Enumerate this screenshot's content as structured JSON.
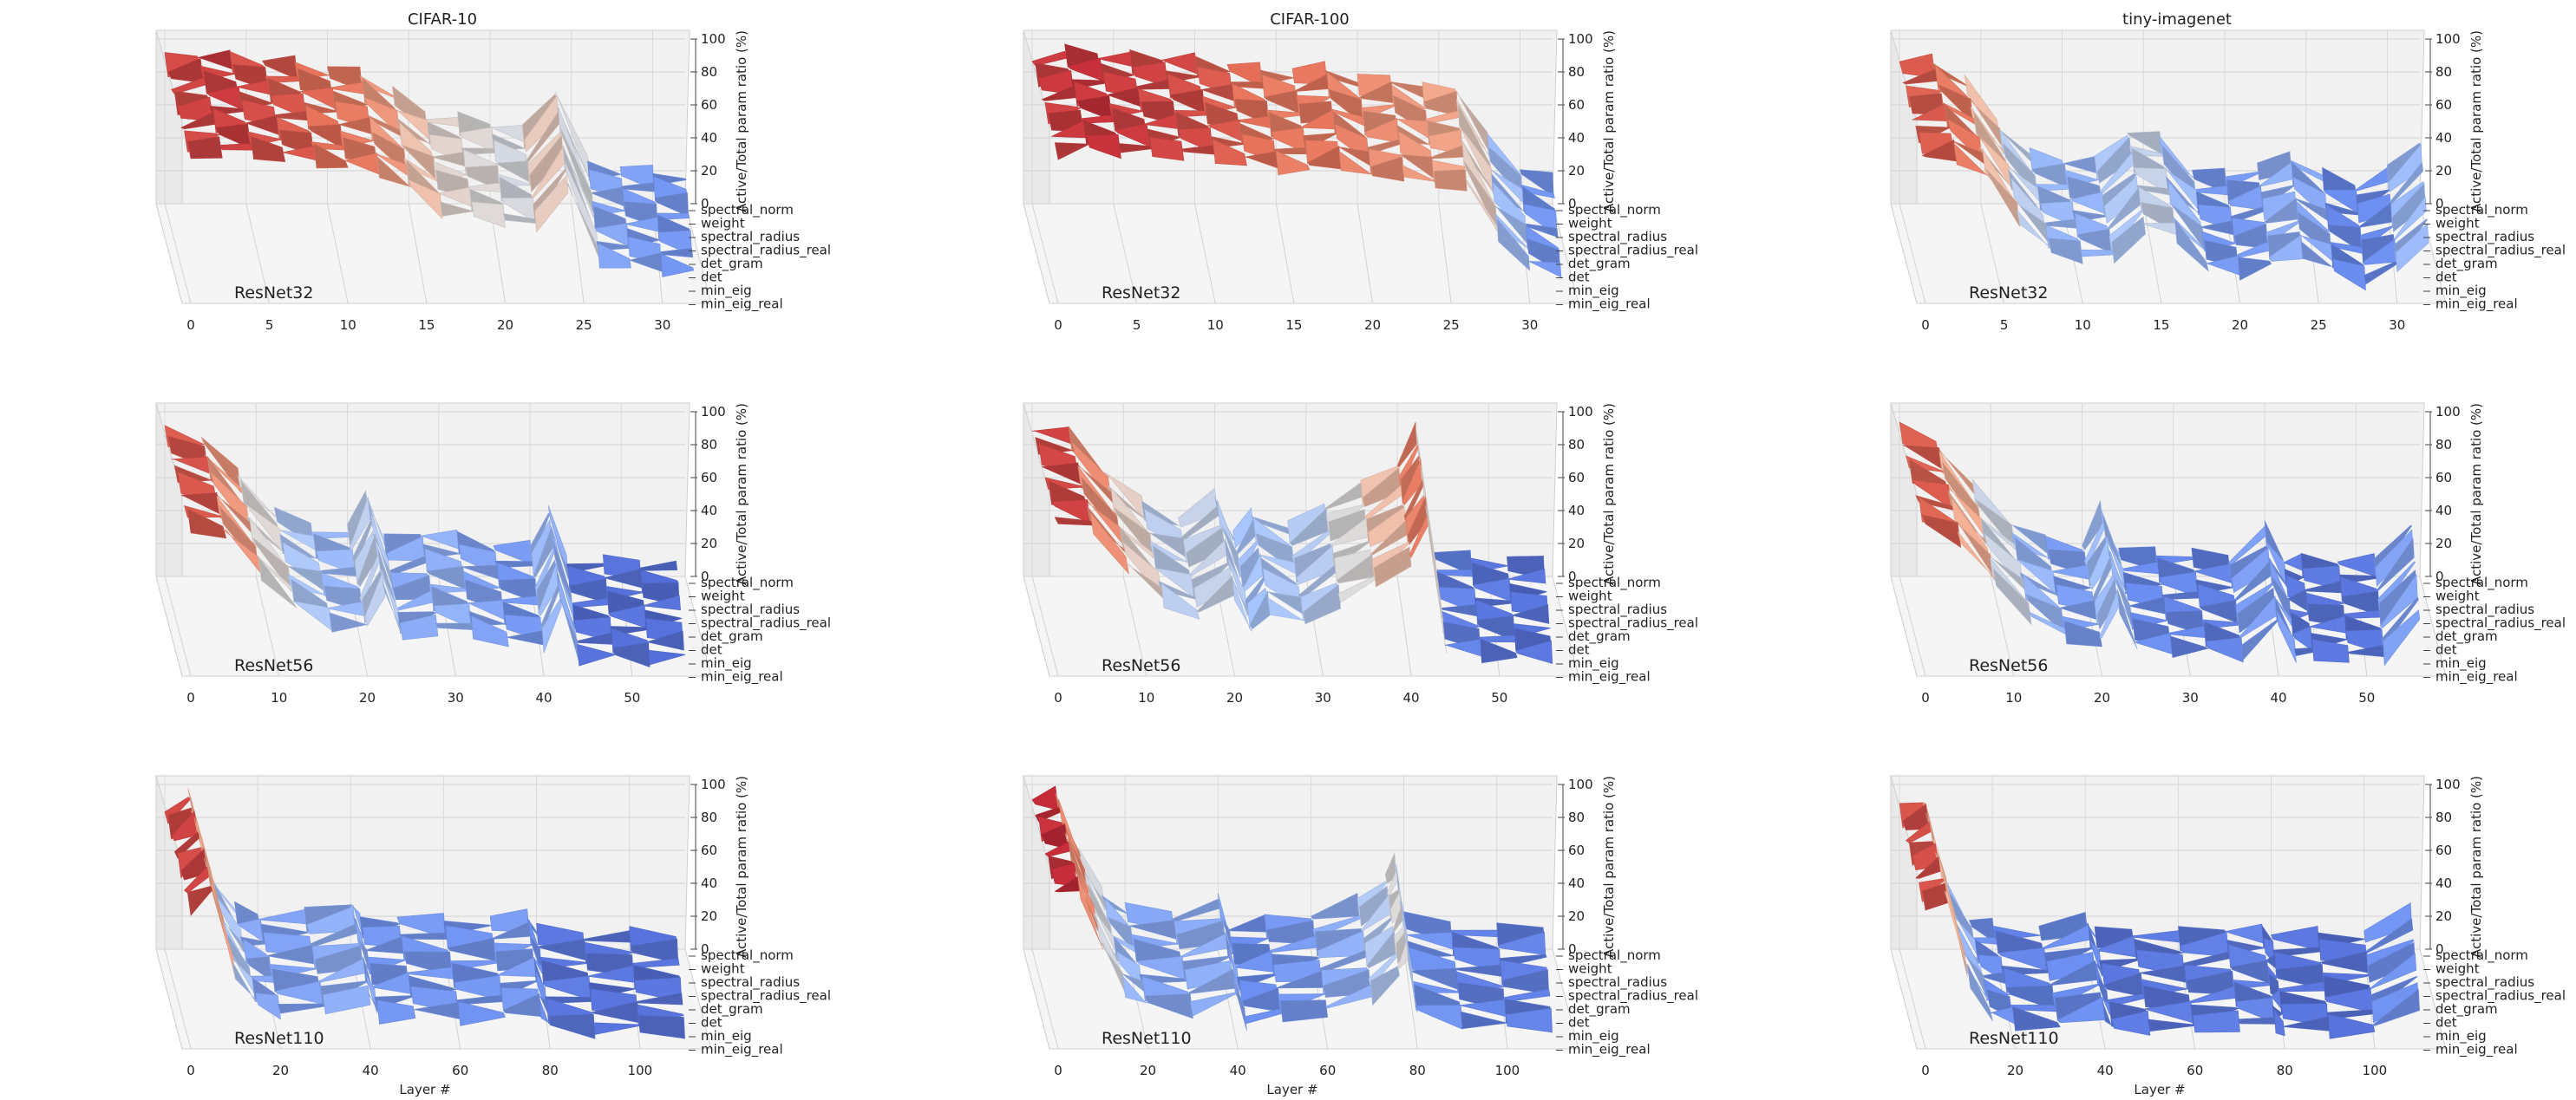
{
  "figure": {
    "columns": [
      "CIFAR-10",
      "CIFAR-100",
      "tiny-imagenet"
    ],
    "rows": [
      "ResNet32",
      "ResNet56",
      "ResNet110"
    ],
    "xlabel": "Layer #",
    "zlabel": "Active/Total param ratio (%)",
    "categories": [
      "spectral_norm",
      "weight",
      "spectral_radius",
      "spectral_radius_real",
      "det_gram",
      "det",
      "min_eig",
      "min_eig_real"
    ],
    "zticks": [
      0,
      20,
      40,
      60,
      80,
      100
    ],
    "xticks_by_row": [
      [
        0,
        5,
        10,
        15,
        20,
        25,
        30
      ],
      [
        0,
        10,
        20,
        30,
        40,
        50
      ],
      [
        0,
        20,
        40,
        60,
        80,
        100
      ]
    ],
    "colormap": [
      "#3b4cc0",
      "#6f92f3",
      "#aac7fd",
      "#dddcdc",
      "#f7b89c",
      "#e7745b",
      "#b40426"
    ]
  },
  "chart_data": [
    {
      "type": "surface",
      "title": "CIFAR-10",
      "label": "ResNet32",
      "xlim": [
        0,
        32
      ],
      "zlim": [
        0,
        100
      ],
      "x": [
        0,
        2,
        4,
        6,
        8,
        10,
        12,
        14,
        16,
        18,
        20,
        22,
        24,
        26,
        28,
        30,
        32
      ],
      "z": [
        88,
        92,
        90,
        88,
        86,
        82,
        80,
        68,
        55,
        52,
        50,
        45,
        70,
        25,
        22,
        20,
        18
      ]
    },
    {
      "type": "surface",
      "title": "CIFAR-100",
      "label": "ResNet32",
      "xlim": [
        0,
        32
      ],
      "zlim": [
        0,
        100
      ],
      "x": [
        0,
        2,
        4,
        6,
        8,
        10,
        12,
        14,
        16,
        18,
        20,
        22,
        24,
        26,
        28,
        30,
        32
      ],
      "z": [
        90,
        93,
        92,
        90,
        90,
        88,
        85,
        82,
        80,
        84,
        75,
        78,
        70,
        72,
        40,
        22,
        15
      ]
    },
    {
      "type": "surface",
      "title": "tiny-imagenet",
      "label": "ResNet32",
      "xlim": [
        0,
        32
      ],
      "zlim": [
        0,
        100
      ],
      "x": [
        0,
        2,
        4,
        6,
        8,
        10,
        12,
        14,
        16,
        18,
        20,
        22,
        24,
        26,
        28,
        30,
        32
      ],
      "z": [
        85,
        88,
        75,
        50,
        30,
        28,
        26,
        45,
        40,
        20,
        18,
        22,
        30,
        18,
        12,
        20,
        40
      ]
    },
    {
      "type": "surface",
      "title": "CIFAR-10",
      "label": "ResNet56",
      "xlim": [
        0,
        57
      ],
      "zlim": [
        0,
        100
      ],
      "x": [
        0,
        4,
        8,
        12,
        16,
        20,
        22,
        24,
        28,
        32,
        36,
        40,
        42,
        44,
        48,
        52,
        56
      ],
      "z": [
        90,
        85,
        62,
        40,
        30,
        28,
        52,
        22,
        28,
        25,
        20,
        18,
        42,
        10,
        10,
        9,
        9
      ]
    },
    {
      "type": "surface",
      "title": "CIFAR-100",
      "label": "ResNet56",
      "xlim": [
        0,
        57
      ],
      "zlim": [
        0,
        100
      ],
      "x": [
        0,
        4,
        8,
        12,
        16,
        20,
        22,
        24,
        28,
        32,
        36,
        40,
        42,
        44,
        48,
        52,
        56
      ],
      "z": [
        92,
        88,
        65,
        45,
        35,
        50,
        25,
        40,
        30,
        45,
        55,
        70,
        90,
        15,
        12,
        10,
        10
      ]
    },
    {
      "type": "surface",
      "title": "tiny-imagenet",
      "label": "ResNet56",
      "xlim": [
        0,
        57
      ],
      "zlim": [
        0,
        100
      ],
      "x": [
        0,
        4,
        8,
        12,
        16,
        20,
        22,
        24,
        28,
        32,
        36,
        40,
        42,
        44,
        48,
        52,
        56
      ],
      "z": [
        90,
        82,
        55,
        35,
        22,
        20,
        42,
        16,
        15,
        14,
        12,
        30,
        12,
        11,
        11,
        10,
        35
      ]
    },
    {
      "type": "surface",
      "title": "CIFAR-10",
      "label": "ResNet110",
      "xlim": [
        0,
        112
      ],
      "zlim": [
        0,
        100
      ],
      "x": [
        0,
        5,
        10,
        15,
        20,
        30,
        40,
        42,
        50,
        60,
        70,
        78,
        80,
        90,
        100,
        110
      ],
      "z": [
        85,
        95,
        45,
        25,
        22,
        22,
        30,
        18,
        20,
        18,
        18,
        22,
        12,
        10,
        10,
        10
      ]
    },
    {
      "type": "surface",
      "title": "CIFAR-100",
      "label": "ResNet110",
      "xlim": [
        0,
        112
      ],
      "zlim": [
        0,
        100
      ],
      "x": [
        0,
        5,
        10,
        15,
        20,
        30,
        40,
        42,
        50,
        60,
        70,
        76,
        78,
        80,
        90,
        100,
        110
      ],
      "z": [
        92,
        95,
        60,
        35,
        25,
        22,
        30,
        15,
        18,
        22,
        30,
        45,
        55,
        20,
        15,
        12,
        14
      ]
    },
    {
      "type": "surface",
      "title": "tiny-imagenet",
      "label": "ResNet110",
      "xlim": [
        0,
        112
      ],
      "zlim": [
        0,
        100
      ],
      "x": [
        0,
        5,
        10,
        15,
        20,
        30,
        40,
        42,
        50,
        60,
        70,
        78,
        80,
        90,
        100,
        110
      ],
      "z": [
        85,
        92,
        40,
        18,
        15,
        12,
        20,
        10,
        12,
        10,
        14,
        12,
        10,
        10,
        10,
        25
      ]
    }
  ]
}
